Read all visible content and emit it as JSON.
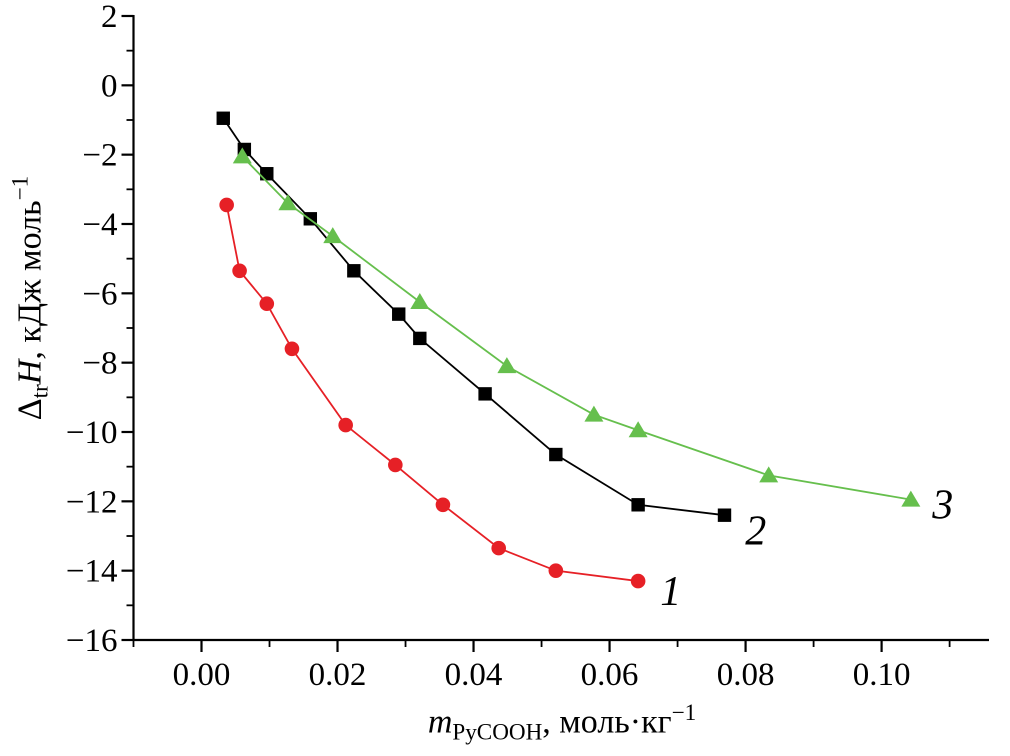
{
  "figure": {
    "background": "#ffffff",
    "axis_color": "#000000"
  },
  "chart_data": {
    "type": "line",
    "title": "",
    "xlabel_text": "m PyCOOH, моль·кг−1",
    "ylabel_text": "Δtr H, кДж моль−1",
    "xlabel_parts": [
      {
        "t": "m",
        "s": "i"
      },
      {
        "t": "PyCOOH",
        "s": "sub"
      },
      {
        "t": ", моль·кг",
        "s": ""
      },
      {
        "t": "−1",
        "s": "sup"
      }
    ],
    "ylabel_parts": [
      {
        "t": "Δ",
        "s": ""
      },
      {
        "t": "tr",
        "s": "sub"
      },
      {
        "t": "H",
        "s": "i"
      },
      {
        "t": ", кДж моль",
        "s": ""
      },
      {
        "t": "−1",
        "s": "sup"
      }
    ],
    "xlim": [
      -0.01,
      0.1158
    ],
    "ylim": [
      -16,
      2
    ],
    "grid": false,
    "legend_position": "inline-labels",
    "x_major_ticks": [
      0.0,
      0.02,
      0.04,
      0.06,
      0.08,
      0.1
    ],
    "x_tick_labels": [
      "0.00",
      "0.02",
      "0.04",
      "0.06",
      "0.08",
      "0.10"
    ],
    "x_minor_ticks": [
      -0.01,
      0.01,
      0.03,
      0.05,
      0.07,
      0.09,
      0.11
    ],
    "y_major_ticks": [
      2,
      0,
      -2,
      -4,
      -6,
      -8,
      -10,
      -12,
      -14,
      -16
    ],
    "y_tick_labels": [
      "2",
      "0",
      "−2",
      "−4",
      "−6",
      "−8",
      "−10",
      "−12",
      "−14",
      "−16"
    ],
    "y_minor_ticks": [
      1,
      -1,
      -3,
      -5,
      -7,
      -9,
      -11,
      -13,
      -15
    ],
    "series": [
      {
        "name": "2",
        "marker": "square",
        "color": "#000000",
        "x": [
          0.0032,
          0.0063,
          0.0096,
          0.016,
          0.0224,
          0.029,
          0.0321,
          0.0417,
          0.0521,
          0.0642,
          0.0769
        ],
        "y": [
          -0.95,
          -1.85,
          -2.55,
          -3.85,
          -5.35,
          -6.6,
          -7.3,
          -8.9,
          -10.65,
          -12.1,
          -12.4
        ],
        "label": "2",
        "label_pos": {
          "x": 0.0815,
          "y": -12.87
        }
      },
      {
        "name": "3",
        "marker": "triangle",
        "color": "#66bf4d",
        "x": [
          0.006,
          0.0127,
          0.0193,
          0.0321,
          0.0449,
          0.0577,
          0.0642,
          0.0834,
          0.1043
        ],
        "y": [
          -2.05,
          -3.4,
          -4.35,
          -6.25,
          -8.1,
          -9.5,
          -9.95,
          -11.25,
          -11.95
        ],
        "label": "3",
        "label_pos": {
          "x": 0.109,
          "y": -12.12
        }
      },
      {
        "name": "1",
        "marker": "circle",
        "color": "#e62026",
        "x": [
          0.0037,
          0.0056,
          0.0096,
          0.0133,
          0.0212,
          0.0285,
          0.0355,
          0.0437,
          0.0521,
          0.0642
        ],
        "y": [
          -3.45,
          -5.35,
          -6.3,
          -7.6,
          -9.8,
          -10.95,
          -12.1,
          -13.35,
          -14.0,
          -14.3
        ],
        "label": "1",
        "label_pos": {
          "x": 0.069,
          "y": -14.62
        }
      }
    ]
  }
}
